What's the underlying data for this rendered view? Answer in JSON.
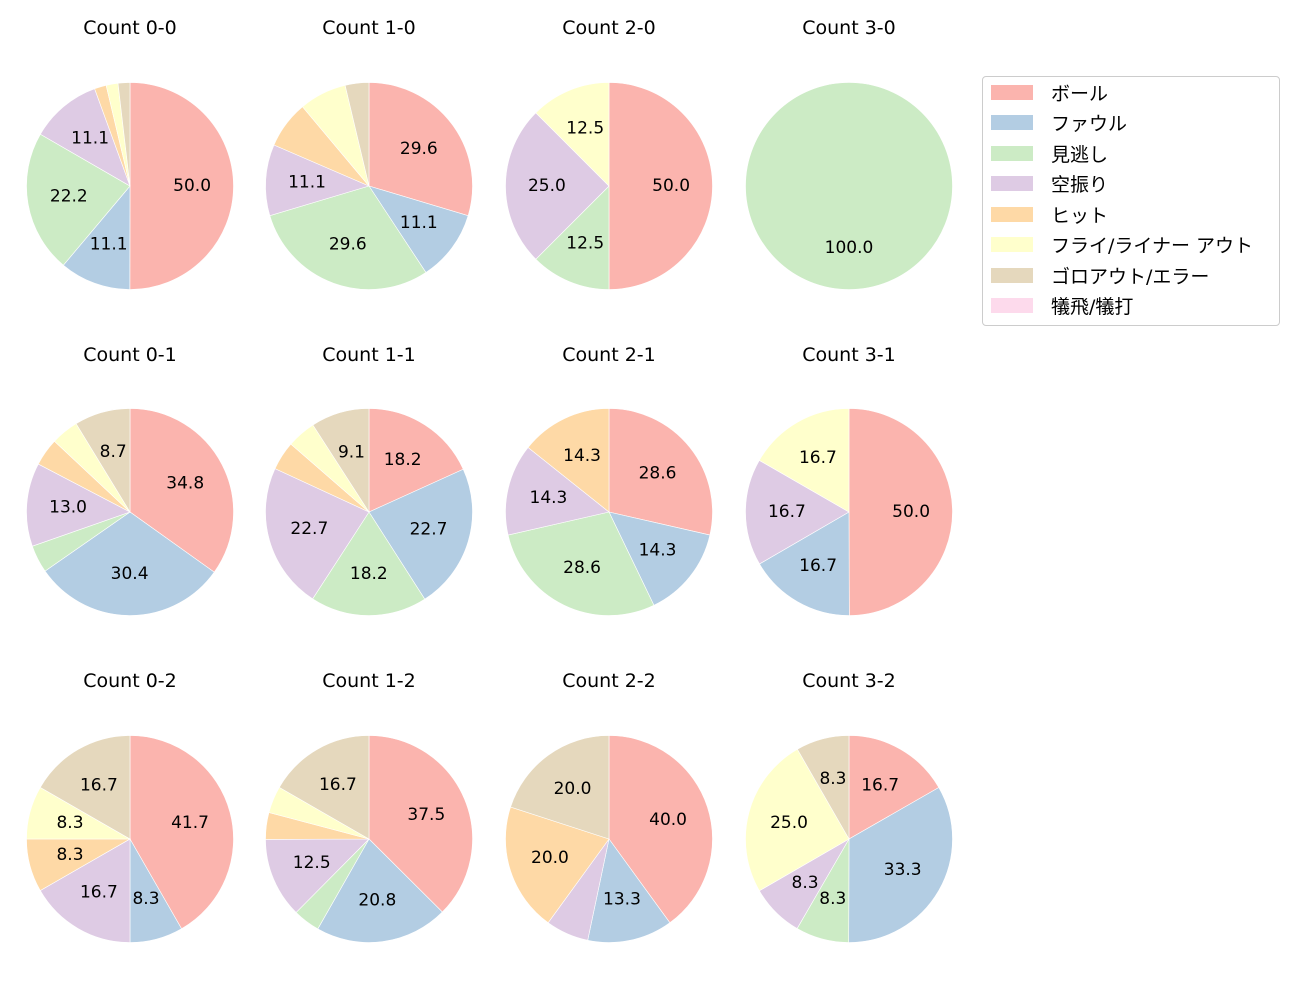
{
  "chart_data": {
    "type": "pie",
    "categories": [
      "ボール",
      "ファウル",
      "見逃し",
      "空振り",
      "ヒット",
      "フライ/ライナー アウト",
      "ゴロアウト/エラー",
      "犠飛/犠打"
    ],
    "colors": [
      "#fbb4ae",
      "#b3cde3",
      "#ccebc5",
      "#decbe4",
      "#fed9a6",
      "#ffffcc",
      "#e5d8bd",
      "#fddaec"
    ],
    "start_angle_deg": 90,
    "direction": "clockwise",
    "label_format": "%.1f",
    "charts": [
      {
        "title": "Count 0-0",
        "values": [
          50.0,
          11.1,
          22.2,
          11.1,
          1.85,
          1.85,
          1.85,
          0
        ],
        "labels": [
          "50.0",
          "11.1",
          "22.2",
          "11.1",
          "",
          "",
          "",
          ""
        ]
      },
      {
        "title": "Count 1-0",
        "values": [
          29.6,
          11.1,
          29.6,
          11.1,
          7.4,
          7.4,
          3.7,
          0
        ],
        "labels": [
          "29.6",
          "11.1",
          "29.6",
          "11.1",
          "",
          "",
          "",
          ""
        ]
      },
      {
        "title": "Count 2-0",
        "values": [
          50.0,
          0,
          12.5,
          25.0,
          0,
          12.5,
          0,
          0
        ],
        "labels": [
          "50.0",
          "",
          "12.5",
          "25.0",
          "",
          "12.5",
          "",
          ""
        ]
      },
      {
        "title": "Count 3-0",
        "values": [
          0,
          0,
          100.0,
          0,
          0,
          0,
          0,
          0
        ],
        "labels": [
          "",
          "",
          "100.0",
          "",
          "",
          "",
          "",
          ""
        ]
      },
      {
        "title": "Count 0-1",
        "values": [
          34.8,
          30.4,
          4.3,
          13.0,
          4.3,
          4.3,
          8.7,
          0
        ],
        "labels": [
          "34.8",
          "30.4",
          "",
          "13.0",
          "",
          "",
          "8.7",
          ""
        ]
      },
      {
        "title": "Count 1-1",
        "values": [
          18.2,
          22.7,
          18.2,
          22.7,
          4.5,
          4.5,
          9.1,
          0
        ],
        "labels": [
          "18.2",
          "22.7",
          "18.2",
          "22.7",
          "",
          "",
          "9.1",
          ""
        ]
      },
      {
        "title": "Count 2-1",
        "values": [
          28.6,
          14.3,
          28.6,
          14.3,
          14.3,
          0,
          0,
          0
        ],
        "labels": [
          "28.6",
          "14.3",
          "28.6",
          "14.3",
          "14.3",
          "",
          "",
          ""
        ]
      },
      {
        "title": "Count 3-1",
        "values": [
          50.0,
          16.7,
          0,
          16.7,
          0,
          16.7,
          0,
          0
        ],
        "labels": [
          "50.0",
          "16.7",
          "",
          "16.7",
          "",
          "16.7",
          "",
          ""
        ]
      },
      {
        "title": "Count 0-2",
        "values": [
          41.7,
          8.3,
          0,
          16.7,
          8.3,
          8.3,
          16.7,
          0
        ],
        "labels": [
          "41.7",
          "8.3",
          "",
          "16.7",
          "8.3",
          "8.3",
          "16.7",
          ""
        ]
      },
      {
        "title": "Count 1-2",
        "values": [
          37.5,
          20.8,
          4.2,
          12.5,
          4.2,
          4.2,
          16.7,
          0
        ],
        "labels": [
          "37.5",
          "20.8",
          "",
          "12.5",
          "",
          "",
          "16.7",
          ""
        ]
      },
      {
        "title": "Count 2-2",
        "values": [
          40.0,
          13.3,
          0,
          6.7,
          20.0,
          0,
          20.0,
          0
        ],
        "labels": [
          "40.0",
          "13.3",
          "",
          "",
          "20.0",
          "",
          "20.0",
          ""
        ]
      },
      {
        "title": "Count 3-2",
        "values": [
          16.7,
          33.3,
          8.3,
          8.3,
          0,
          25.0,
          8.3,
          0
        ],
        "labels": [
          "16.7",
          "33.3",
          "8.3",
          "8.3",
          "",
          "25.0",
          "8.3",
          ""
        ]
      }
    ],
    "legend_position": "upper right"
  },
  "legend": {
    "items": [
      {
        "label": "ボール",
        "color": "#fbb4ae"
      },
      {
        "label": "ファウル",
        "color": "#b3cde3"
      },
      {
        "label": "見逃し",
        "color": "#ccebc5"
      },
      {
        "label": "空振り",
        "color": "#decbe4"
      },
      {
        "label": "ヒット",
        "color": "#fed9a6"
      },
      {
        "label": "フライ/ライナー アウト",
        "color": "#ffffcc"
      },
      {
        "label": "ゴロアウト/エラー",
        "color": "#e5d8bd"
      },
      {
        "label": "犠飛/犠打",
        "color": "#fddaec"
      }
    ]
  }
}
